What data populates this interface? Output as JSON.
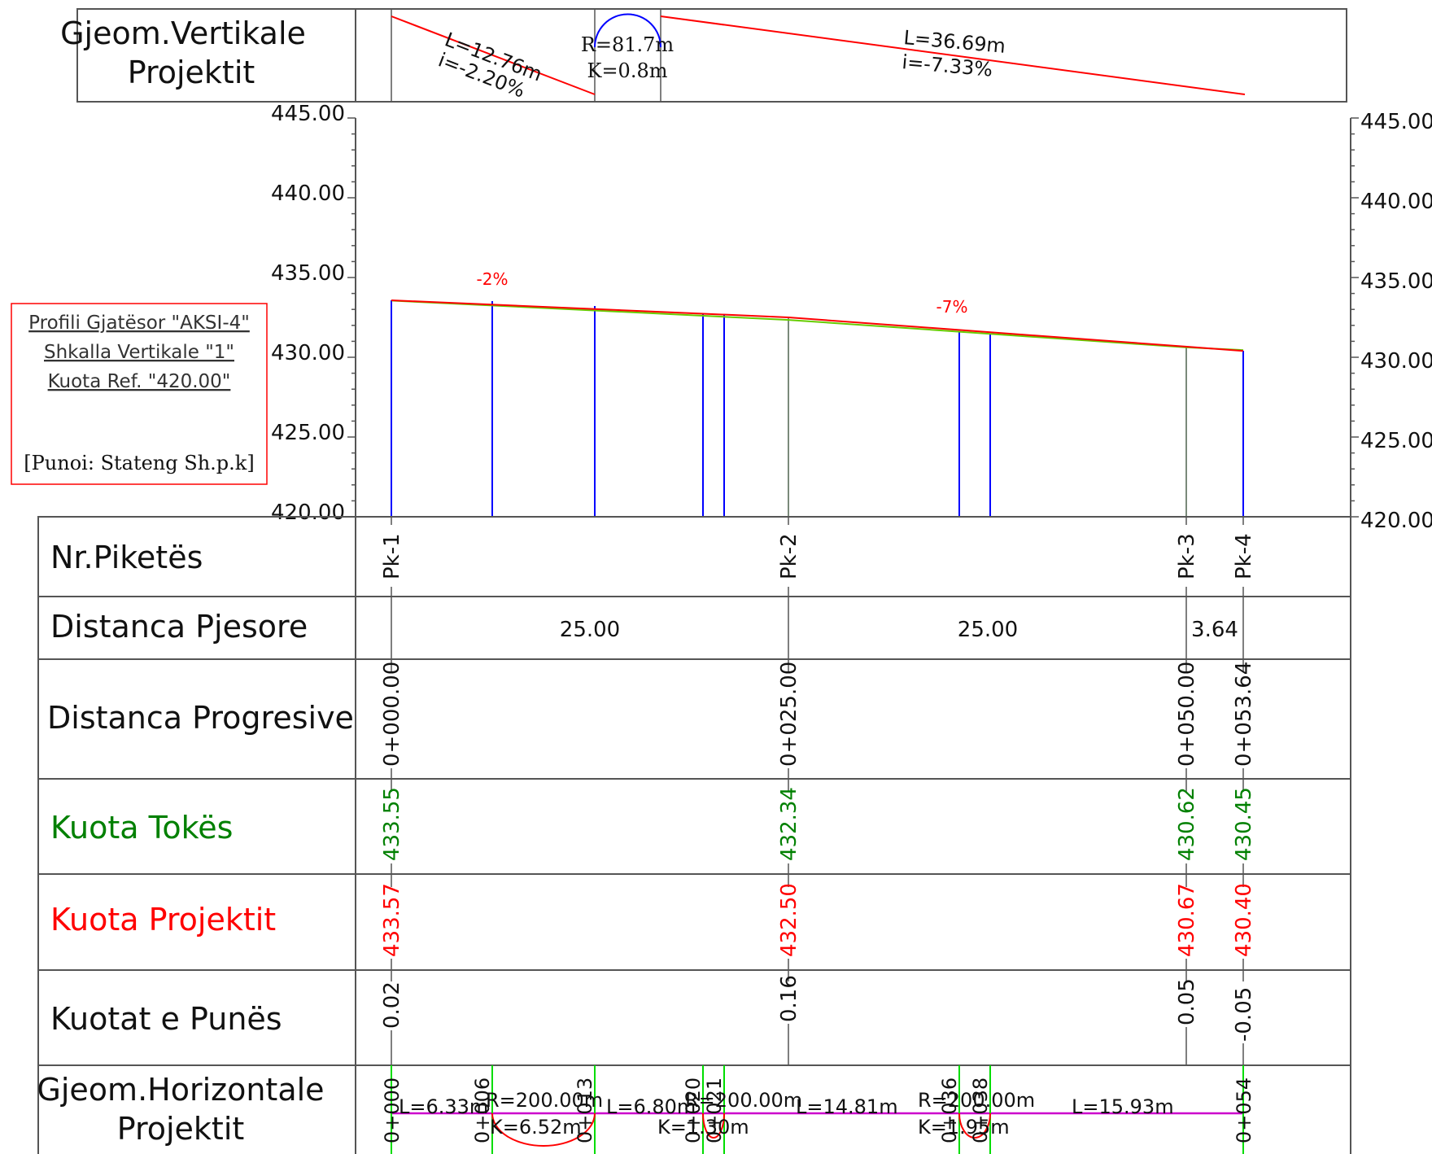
{
  "colors": {
    "frame": "#555555",
    "design": "#ff0000",
    "ground": "#66cc00",
    "station": "#0000ff",
    "green_text": "#008000",
    "curve": "#0000ff",
    "horiz_line": "#cc00cc",
    "horiz_marker": "#00dd00"
  },
  "vertical_geometry": {
    "label_line1": "Gjeom.Vertikale",
    "label_line2": "Projektit",
    "seg1_L": "L=12.76m",
    "seg1_i": "i=-2.20%",
    "curve_R": "R=81.7m",
    "curve_K": "K=0.8m",
    "seg2_L": "L=36.69m",
    "seg2_i": "i=-7.33%"
  },
  "legend": {
    "line1": "Profili Gjatësor \"AKSI-4\"",
    "line2": "Shkalla Vertikale \"1\"",
    "line3": "Kuota Ref. \"420.00\"",
    "author": "[Punoi: Stateng Sh.p.k]"
  },
  "chart_data": {
    "type": "line",
    "x": [
      0,
      25,
      50,
      53.64
    ],
    "ylim": [
      420,
      445
    ],
    "yticks_left": [
      "445.00",
      "440.00",
      "435.00",
      "430.00",
      "425.00",
      "420.00"
    ],
    "yticks_right": [
      "445.00",
      "440.00",
      "435.00",
      "430.00",
      "425.00",
      "420.00"
    ],
    "series": [
      {
        "values": [
          433.55,
          432.34,
          430.62,
          430.45
        ]
      },
      {
        "values": [
          433.57,
          432.5,
          430.67,
          430.4
        ]
      }
    ],
    "annotations": [
      "-2%",
      "-7%"
    ]
  },
  "table": {
    "rows": {
      "piketa": "Nr.Piketës",
      "pjesore": "Distanca Pjesore",
      "progresive": "Distanca Progresive",
      "toke": "Kuota Tokës",
      "projekt": "Kuota Projektit",
      "pune": "Kuotat e Punës",
      "horiz_line1": "Gjeom.Horizontale",
      "horiz_line2": "Projektit"
    },
    "stations": [
      {
        "pk": "Pk-1",
        "prog": "0+000.00",
        "toke": "433.55",
        "proj": "433.57",
        "pune": "0.02"
      },
      {
        "pk": "Pk-2",
        "prog": "0+025.00",
        "toke": "432.34",
        "proj": "432.50",
        "pune": "0.16"
      },
      {
        "pk": "Pk-3",
        "prog": "0+050.00",
        "toke": "430.62",
        "proj": "430.67",
        "pune": "0.05"
      },
      {
        "pk": "Pk-4",
        "prog": "0+053.64",
        "toke": "430.45",
        "proj": "430.40",
        "pune": "-0.05"
      }
    ],
    "partial": [
      "25.00",
      "25.00",
      "3.64"
    ]
  },
  "horizontal_geometry": {
    "start": "0+000",
    "end": "0+054",
    "l1": "L=6.33m",
    "r1": "R=200.00m",
    "k1": "K=6.52m",
    "l2": "L=6.80m",
    "r2": "R=200.00m",
    "k2": "K=1.30m",
    "l3": "L=14.81m",
    "r3": "R=200.00m",
    "k3": "K=1.95m",
    "l4": "L=15.93m",
    "st1": "0+006",
    "st2": "0+013",
    "st3": "0+020",
    "st4": "0+021",
    "st5": "0+036",
    "st6": "0+038"
  }
}
